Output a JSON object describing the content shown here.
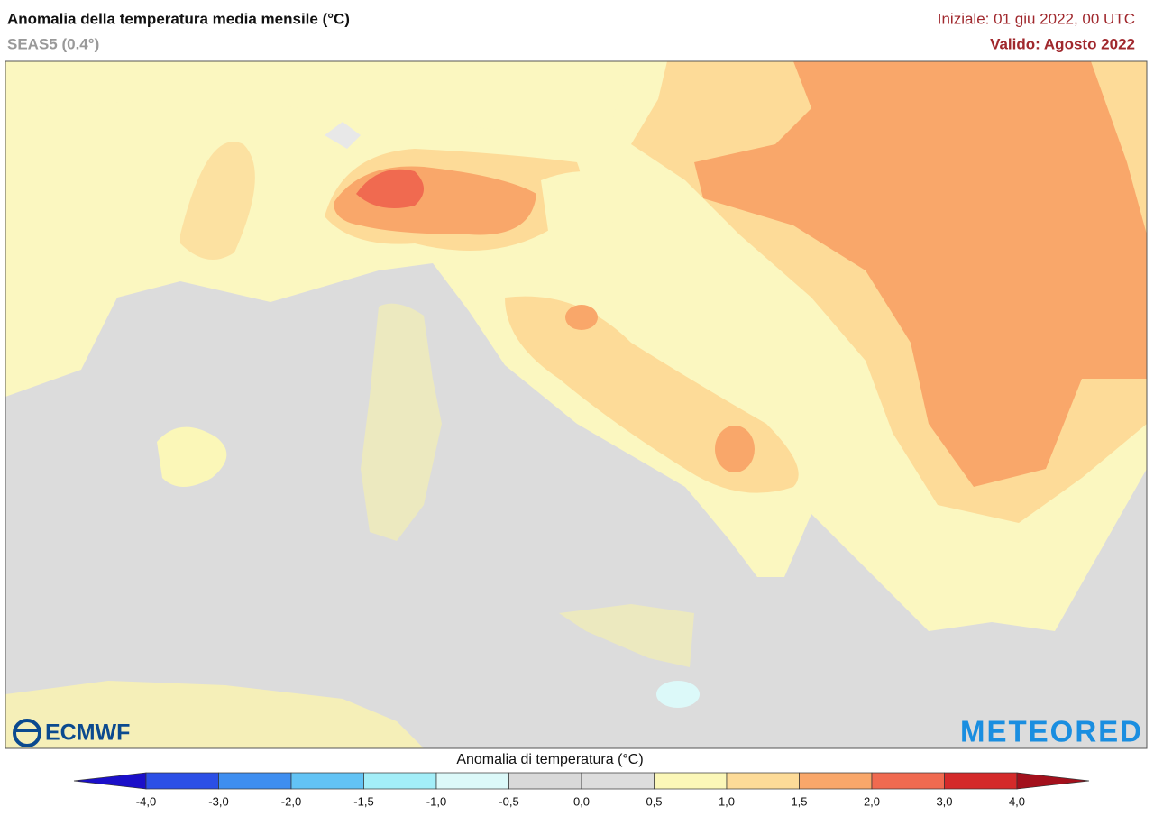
{
  "header": {
    "title": "Anomalia della temperatura media mensile (°C)",
    "subtitle": "SEAS5 (0.4°)",
    "init": "Iniziale: 01 giu 2022, 00 UTC",
    "valid": "Valido: Agosto 2022"
  },
  "map": {
    "logo_left": "ECMWF",
    "logo_right": "METEORED"
  },
  "legend": {
    "title": "Anomalia di temperatura (°C)",
    "ticks": [
      "-4,0",
      "-3,0",
      "-2,0",
      "-1,5",
      "-1,0",
      "-0,5",
      "0,0",
      "0,5",
      "1,0",
      "1,5",
      "2,0",
      "3,0",
      "4,0"
    ],
    "colors": [
      "#1b0fc9",
      "#2b4fe6",
      "#3e8ef0",
      "#62c3f5",
      "#a3eef8",
      "#dcf9f9",
      "#d9d9d9",
      "#dddddd",
      "#fbf7b8",
      "#fddb98",
      "#f9a76a",
      "#f06a50",
      "#d42a2a",
      "#a3101c"
    ]
  }
}
